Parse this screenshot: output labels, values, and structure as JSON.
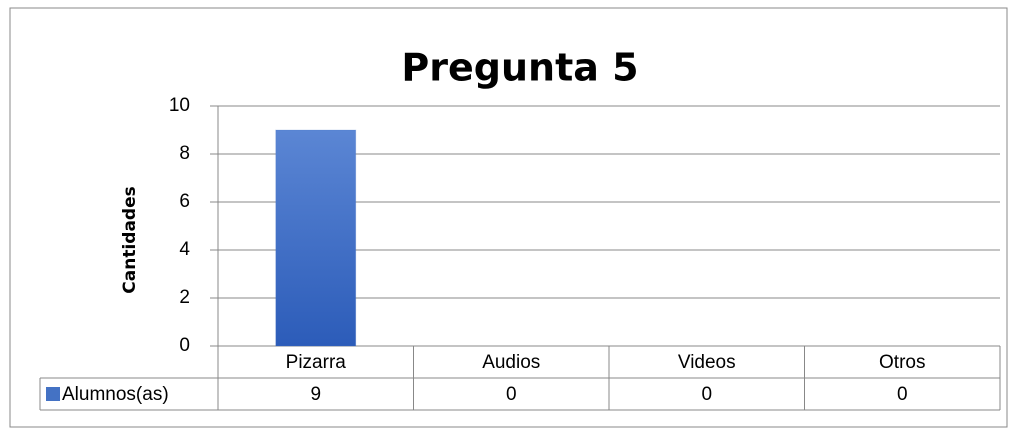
{
  "chart_data": {
    "type": "bar",
    "title": "Pregunta 5",
    "y_label": "Cantidades",
    "categories": [
      "Pizarra",
      "Audios",
      "Videos",
      "Otros"
    ],
    "series": [
      {
        "name": "Alumnos(as)",
        "color": "#4472c4",
        "values": [
          9,
          0,
          0,
          0
        ]
      }
    ],
    "ylim": [
      0,
      10
    ],
    "yticks": [
      0,
      2,
      4,
      6,
      8,
      10
    ],
    "grid": true,
    "data_table": true
  }
}
